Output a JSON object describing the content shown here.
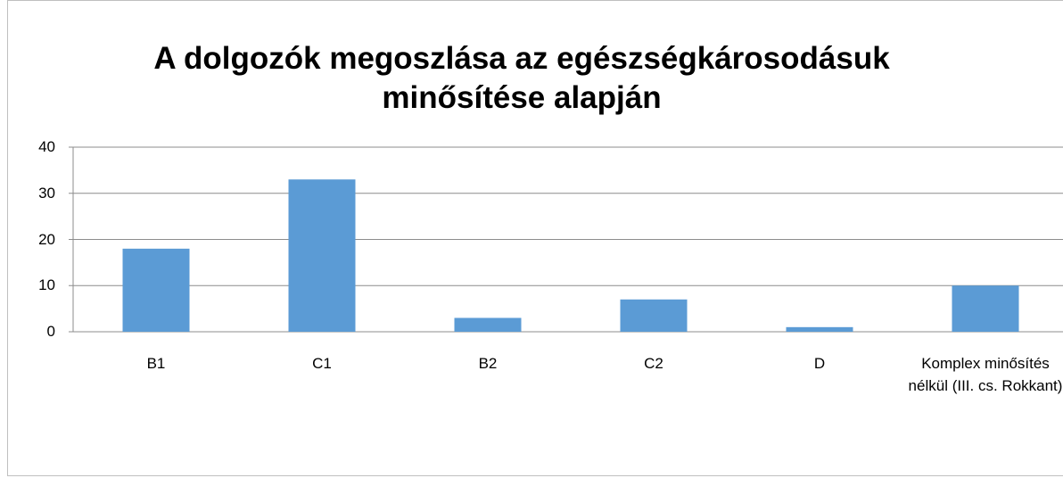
{
  "chart_data": {
    "type": "bar",
    "title": "A dolgozók megoszlása az egészségkárosodásuk minősítése alapján",
    "categories": [
      "B1",
      "C1",
      "B2",
      "C2",
      "D",
      "Komplex minősítés nélkül (III. cs. Rokkant)"
    ],
    "values": [
      18,
      33,
      3,
      7,
      1,
      10
    ],
    "color": "#5b9bd5",
    "ylim": [
      0,
      40
    ],
    "yticks": [
      0,
      10,
      20,
      30,
      40
    ],
    "grid": true
  }
}
